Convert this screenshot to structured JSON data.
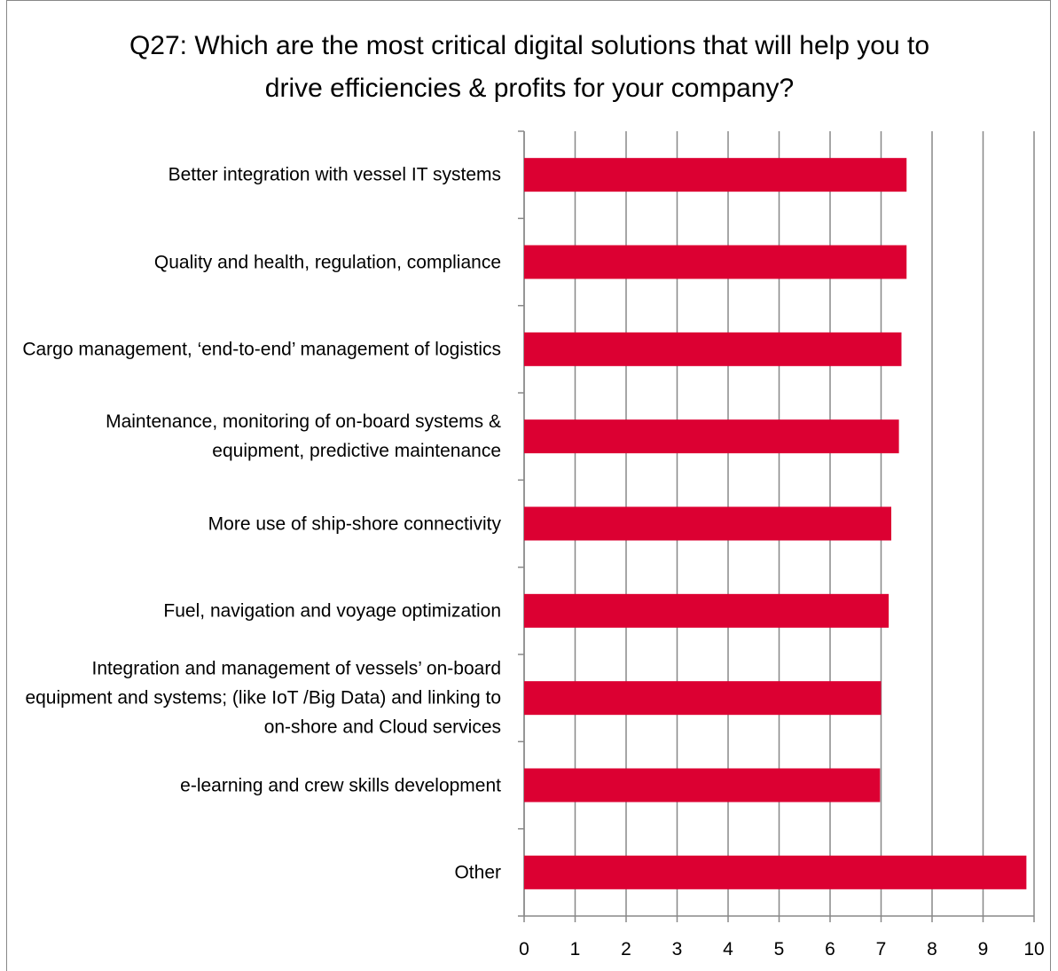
{
  "chart_data": {
    "type": "barh",
    "title": "Q27: Which are the most critical digital solutions that will help you to drive efficiencies & profits for your company?",
    "categories": [
      "Better integration with vessel IT systems",
      "Quality and health, regulation, compliance",
      "Cargo management, ‘end-to-end’ management of logistics",
      "Maintenance, monitoring of on-board systems & equipment, predictive maintenance",
      "More use of ship-shore connectivity",
      "Fuel, navigation and voyage optimization",
      "Integration and management of vessels’ on-board equipment and systems; (like IoT /Big Data) and linking to on-shore and Cloud services",
      "e-learning and crew skills development",
      "Other"
    ],
    "values": [
      7.5,
      7.5,
      7.4,
      7.35,
      7.2,
      7.15,
      7.0,
      6.98,
      9.85
    ],
    "color": "#dc0032",
    "xlim": [
      0,
      10
    ],
    "xticks": [
      0,
      1,
      2,
      3,
      4,
      5,
      6,
      7,
      8,
      9,
      10
    ],
    "grid": true
  }
}
